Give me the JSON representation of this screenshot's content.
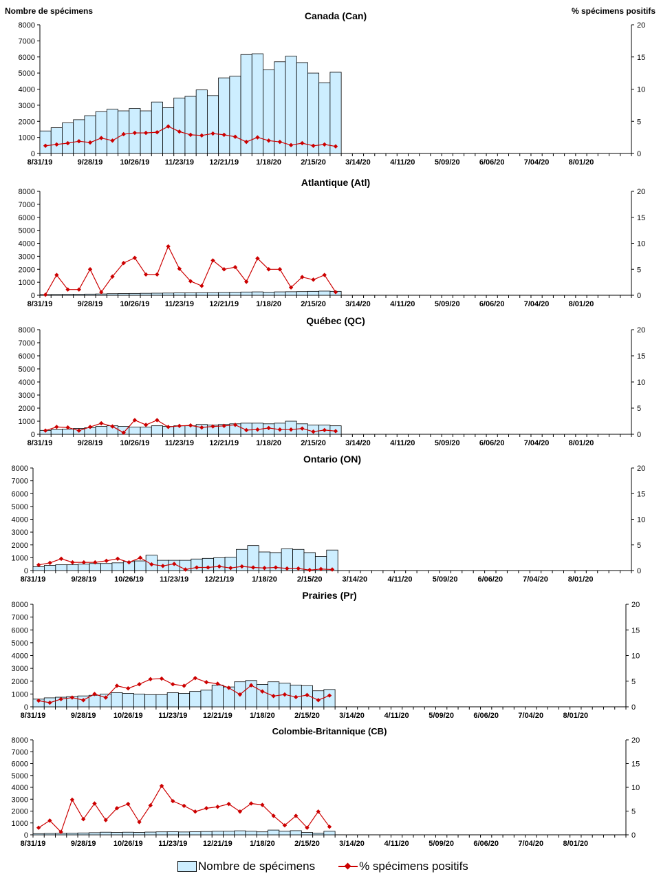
{
  "y_axis_title": "Nombre de spécimens",
  "y2_axis_title": "% spécimens positifs",
  "legend": {
    "bars_label": "Nombre de spécimens",
    "line_label": "% spécimens positifs"
  },
  "colors": {
    "bar_fill": "#cdeeff",
    "bar_stroke": "#000000",
    "line": "#cc0000"
  },
  "chart_data": [
    {
      "type": "bar",
      "title": "Canada (Can)",
      "xlabel": "",
      "ylabel": "Nombre de spécimens",
      "y2label": "% spécimens positifs",
      "ylim": [
        0,
        8000
      ],
      "y2lim": [
        0,
        20
      ],
      "yticks": [
        0,
        1000,
        2000,
        3000,
        4000,
        5000,
        6000,
        7000,
        8000
      ],
      "y2ticks": [
        0,
        5,
        10,
        15,
        20
      ],
      "date_labels": [
        "8/31/19",
        "9/28/19",
        "10/26/19",
        "11/23/19",
        "12/21/19",
        "1/18/20",
        "2/15/20",
        "3/14/20",
        "4/11/20",
        "5/09/20",
        "6/06/20",
        "7/04/20",
        "8/01/20"
      ],
      "series": [
        {
          "name": "Nombre de spécimens",
          "type": "bar",
          "values": [
            1400,
            1600,
            1900,
            2100,
            2350,
            2600,
            2750,
            2650,
            2800,
            2650,
            3200,
            2850,
            3450,
            3550,
            3950,
            3600,
            4700,
            4800,
            6150,
            6200,
            5200,
            5700,
            6050,
            5650,
            5000,
            4400,
            5050
          ]
        },
        {
          "name": "% spécimens positifs",
          "type": "line",
          "values": [
            1.2,
            1.4,
            1.6,
            1.9,
            1.7,
            2.4,
            2.0,
            3.0,
            3.2,
            3.2,
            3.3,
            4.2,
            3.4,
            2.9,
            2.8,
            3.1,
            2.9,
            2.6,
            1.8,
            2.5,
            2.0,
            1.8,
            1.3,
            1.6,
            1.2,
            1.4,
            1.1
          ]
        }
      ]
    },
    {
      "type": "bar",
      "title": "Atlantique (Atl)",
      "xlabel": "",
      "ylabel": "Nombre de spécimens",
      "y2label": "% spécimens positifs",
      "ylim": [
        0,
        8000
      ],
      "y2lim": [
        0,
        20
      ],
      "yticks": [
        0,
        1000,
        2000,
        3000,
        4000,
        5000,
        6000,
        7000,
        8000
      ],
      "y2ticks": [
        0,
        5,
        10,
        15,
        20
      ],
      "date_labels": [
        "8/31/19",
        "9/28/19",
        "10/26/19",
        "11/23/19",
        "12/21/19",
        "1/18/20",
        "2/15/20",
        "3/14/20",
        "4/11/20",
        "5/09/20",
        "6/06/20",
        "7/04/20",
        "8/01/20"
      ],
      "series": [
        {
          "name": "Nombre de spécimens",
          "type": "bar",
          "values": [
            50,
            60,
            70,
            80,
            90,
            100,
            120,
            130,
            140,
            150,
            160,
            170,
            180,
            180,
            200,
            200,
            220,
            230,
            250,
            260,
            240,
            260,
            270,
            280,
            300,
            320,
            300
          ]
        },
        {
          "name": "% spécimens positifs",
          "type": "line",
          "values": [
            0.1,
            3.9,
            1.1,
            1.1,
            5.0,
            0.6,
            3.6,
            6.2,
            7.2,
            4.0,
            4.0,
            9.4,
            5.1,
            2.7,
            1.8,
            6.7,
            5.0,
            5.4,
            2.6,
            7.1,
            5.0,
            5.0,
            1.5,
            3.5,
            3.0,
            3.9,
            0.6
          ]
        }
      ]
    },
    {
      "type": "bar",
      "title": "Québec (QC)",
      "xlabel": "",
      "ylabel": "Nombre de spécimens",
      "y2label": "% spécimens positifs",
      "ylim": [
        0,
        8000
      ],
      "y2lim": [
        0,
        20
      ],
      "yticks": [
        0,
        1000,
        2000,
        3000,
        4000,
        5000,
        6000,
        7000,
        8000
      ],
      "y2ticks": [
        0,
        5,
        10,
        15,
        20
      ],
      "date_labels": [
        "8/31/19",
        "9/28/19",
        "10/26/19",
        "11/23/19",
        "12/21/19",
        "1/18/20",
        "2/15/20",
        "3/14/20",
        "4/11/20",
        "5/09/20",
        "6/06/20",
        "7/04/20",
        "8/01/20"
      ],
      "series": [
        {
          "name": "Nombre de spécimens",
          "type": "bar",
          "values": [
            300,
            350,
            400,
            450,
            500,
            600,
            650,
            600,
            550,
            550,
            650,
            600,
            650,
            650,
            750,
            700,
            750,
            800,
            850,
            850,
            800,
            850,
            1000,
            800,
            700,
            700,
            650
          ]
        },
        {
          "name": "% spécimens positifs",
          "type": "line",
          "values": [
            0.7,
            1.4,
            1.3,
            0.7,
            1.4,
            2.1,
            1.5,
            0.3,
            2.7,
            1.8,
            2.7,
            1.4,
            1.6,
            1.7,
            1.3,
            1.5,
            1.6,
            1.8,
            0.8,
            0.9,
            1.2,
            0.9,
            0.9,
            1.1,
            0.5,
            0.8,
            0.6
          ]
        }
      ]
    },
    {
      "type": "bar",
      "title": "Ontario (ON)",
      "xlabel": "",
      "ylabel": "Nombre de spécimens",
      "y2label": "% spécimens positifs",
      "ylim": [
        0,
        8000
      ],
      "y2lim": [
        0,
        20
      ],
      "yticks": [
        0,
        1000,
        2000,
        3000,
        4000,
        5000,
        6000,
        7000,
        8000
      ],
      "y2ticks": [
        0,
        5,
        10,
        15,
        20
      ],
      "date_labels": [
        "8/31/19",
        "9/28/19",
        "10/26/19",
        "11/23/19",
        "12/21/19",
        "1/18/20",
        "2/15/20",
        "3/14/20",
        "4/11/20",
        "5/09/20",
        "6/06/20",
        "7/04/20",
        "8/01/20"
      ],
      "series": [
        {
          "name": "Nombre de spécimens",
          "type": "bar",
          "values": [
            300,
            400,
            450,
            450,
            500,
            550,
            550,
            600,
            700,
            750,
            1200,
            800,
            800,
            800,
            900,
            950,
            1000,
            1050,
            1650,
            1950,
            1450,
            1400,
            1700,
            1650,
            1400,
            1100,
            1600
          ]
        },
        {
          "name": "% spécimens positifs",
          "type": "line",
          "values": [
            1.1,
            1.5,
            2.3,
            1.6,
            1.6,
            1.6,
            1.9,
            2.3,
            1.6,
            2.5,
            1.2,
            0.9,
            1.3,
            0.2,
            0.6,
            0.6,
            0.8,
            0.5,
            0.8,
            0.6,
            0.5,
            0.6,
            0.4,
            0.4,
            0.1,
            0.3,
            0.2
          ]
        }
      ]
    },
    {
      "type": "bar",
      "title": "Prairies (Pr)",
      "xlabel": "",
      "ylabel": "Nombre de spécimens",
      "y2label": "% spécimens positifs",
      "ylim": [
        0,
        8000
      ],
      "y2lim": [
        0,
        20
      ],
      "yticks": [
        0,
        1000,
        2000,
        3000,
        4000,
        5000,
        6000,
        7000,
        8000
      ],
      "y2ticks": [
        0,
        5,
        10,
        15,
        20
      ],
      "date_labels": [
        "8/31/19",
        "9/28/19",
        "10/26/19",
        "11/23/19",
        "12/21/19",
        "1/18/20",
        "2/15/20",
        "3/14/20",
        "4/11/20",
        "5/09/20",
        "6/06/20",
        "7/04/20",
        "8/01/20"
      ],
      "series": [
        {
          "name": "Nombre de spécimens",
          "type": "bar",
          "values": [
            600,
            700,
            750,
            800,
            850,
            900,
            1000,
            1100,
            1050,
            1000,
            950,
            950,
            1100,
            1050,
            1200,
            1300,
            1700,
            1550,
            1950,
            2050,
            1750,
            1950,
            1850,
            1700,
            1650,
            1250,
            1350
          ]
        },
        {
          "name": "% spécimens positifs",
          "type": "line",
          "values": [
            1.2,
            0.8,
            1.5,
            1.8,
            1.3,
            2.5,
            1.8,
            4.1,
            3.6,
            4.4,
            5.4,
            5.5,
            4.4,
            4.1,
            5.6,
            4.8,
            4.5,
            3.7,
            2.4,
            4.2,
            3.0,
            2.1,
            2.4,
            1.9,
            2.3,
            1.3,
            2.2
          ]
        }
      ]
    },
    {
      "type": "bar",
      "title": "Colombie-Britannique (CB)",
      "xlabel": "",
      "ylabel": "Nombre de spécimens",
      "y2label": "% spécimens positifs",
      "ylim": [
        0,
        8000
      ],
      "y2lim": [
        0,
        20
      ],
      "yticks": [
        0,
        1000,
        2000,
        3000,
        4000,
        5000,
        6000,
        7000,
        8000
      ],
      "y2ticks": [
        0,
        5,
        10,
        15,
        20
      ],
      "date_labels": [
        "8/31/19",
        "9/28/19",
        "10/26/19",
        "11/23/19",
        "12/21/19",
        "1/18/20",
        "2/15/20",
        "3/14/20",
        "4/11/20",
        "5/09/20",
        "6/06/20",
        "7/04/20",
        "8/01/20"
      ],
      "series": [
        {
          "name": "Nombre de spécimens",
          "type": "bar",
          "values": [
            100,
            120,
            130,
            150,
            160,
            180,
            220,
            200,
            220,
            200,
            230,
            250,
            260,
            240,
            260,
            280,
            300,
            300,
            340,
            300,
            250,
            400,
            300,
            350,
            200,
            150,
            300
          ]
        },
        {
          "name": "% spécimens positifs",
          "type": "line",
          "values": [
            1.5,
            3.0,
            0.6,
            7.4,
            3.3,
            6.6,
            3.1,
            5.6,
            6.5,
            2.7,
            6.2,
            10.3,
            7.1,
            6.1,
            4.9,
            5.6,
            5.9,
            6.5,
            4.9,
            6.6,
            6.3,
            4.0,
            2.0,
            4.0,
            1.5,
            4.9,
            1.7
          ]
        }
      ]
    }
  ]
}
